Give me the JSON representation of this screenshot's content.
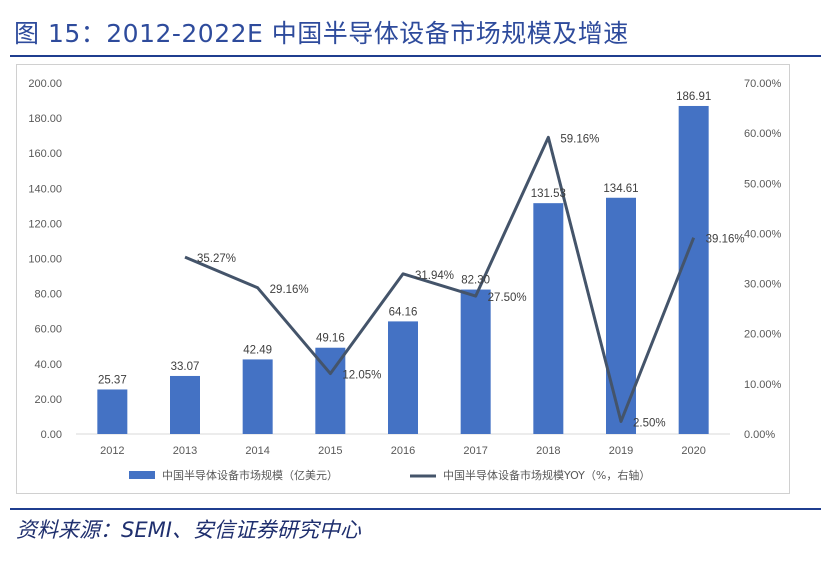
{
  "figure": {
    "title": "图 15：2012-2022E 中国半导体设备市场规模及增速",
    "source": "资料来源：SEMI、安信证券研究中心"
  },
  "chart_data": {
    "type": "bar",
    "categories": [
      "2012",
      "2013",
      "2014",
      "2015",
      "2016",
      "2017",
      "2018",
      "2019",
      "2020"
    ],
    "series": [
      {
        "name": "中国半导体设备市场规模（亿美元）",
        "type": "bar",
        "axis": "left",
        "values": [
          25.37,
          33.07,
          42.49,
          49.16,
          64.16,
          82.3,
          131.53,
          134.61,
          186.91
        ],
        "labels": [
          "25.37",
          "33.07",
          "42.49",
          "49.16",
          "64.16",
          "82.30",
          "131.53",
          "134.61",
          "186.91"
        ],
        "color": "#4472c4"
      },
      {
        "name": "中国半导体设备市场规模YOY（%，右轴）",
        "type": "line",
        "axis": "right",
        "values": [
          null,
          35.27,
          29.16,
          12.05,
          31.94,
          27.5,
          59.16,
          2.5,
          39.16
        ],
        "labels": [
          "",
          "35.27%",
          "29.16%",
          "12.05%",
          "31.94%",
          "27.50%",
          "59.16%",
          "2.50%",
          "39.16%"
        ],
        "color": "#44546a"
      }
    ],
    "y_left": {
      "range": [
        0,
        200
      ],
      "ticks": [
        "0.00",
        "20.00",
        "40.00",
        "60.00",
        "80.00",
        "100.00",
        "120.00",
        "140.00",
        "160.00",
        "180.00",
        "200.00"
      ]
    },
    "y_right": {
      "range": [
        0,
        70
      ],
      "ticks": [
        "0.00%",
        "10.00%",
        "20.00%",
        "30.00%",
        "40.00%",
        "50.00%",
        "60.00%",
        "70.00%"
      ]
    },
    "grid": false,
    "legend_position": "bottom"
  }
}
